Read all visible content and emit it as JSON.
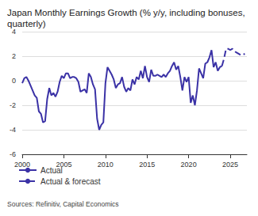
{
  "chart_data": {
    "type": "line",
    "title": "Japan Monthly Earnings Growth (% y/y, including bonuses, quarterly)",
    "source": "Sources: Refinitiv, Capital Economics",
    "x": [
      2000,
      2000.25,
      2000.5,
      2000.75,
      2001,
      2001.25,
      2001.5,
      2001.75,
      2002,
      2002.25,
      2002.5,
      2002.75,
      2003,
      2003.25,
      2003.5,
      2003.75,
      2004,
      2004.25,
      2004.5,
      2004.75,
      2005,
      2005.25,
      2005.5,
      2005.75,
      2006,
      2006.25,
      2006.5,
      2006.75,
      2007,
      2007.25,
      2007.5,
      2007.75,
      2008,
      2008.25,
      2008.5,
      2008.75,
      2009,
      2009.25,
      2009.5,
      2009.75,
      2010,
      2010.25,
      2010.5,
      2010.75,
      2011,
      2011.25,
      2011.5,
      2011.75,
      2012,
      2012.25,
      2012.5,
      2012.75,
      2013,
      2013.25,
      2013.5,
      2013.75,
      2014,
      2014.25,
      2014.5,
      2014.75,
      2015,
      2015.25,
      2015.5,
      2015.75,
      2016,
      2016.25,
      2016.5,
      2016.75,
      2017,
      2017.25,
      2017.5,
      2017.75,
      2018,
      2018.25,
      2018.5,
      2018.75,
      2019,
      2019.25,
      2019.5,
      2019.75,
      2020,
      2020.25,
      2020.5,
      2020.75,
      2021,
      2021.25,
      2021.5,
      2021.75,
      2022,
      2022.25,
      2022.5,
      2022.75,
      2023,
      2023.25,
      2023.5,
      2023.75,
      2024,
      2024.25,
      2024.5,
      2024.75,
      2025,
      2025.25,
      2025.5,
      2025.75,
      2026,
      2026.25,
      2026.5,
      2026.75
    ],
    "series": [
      {
        "name": "Actual",
        "color": "#3b32a6",
        "line_style": "solid",
        "values": [
          -0.2,
          0.2,
          0.3,
          0.0,
          -0.4,
          -0.8,
          -1.2,
          -1.4,
          -2.5,
          -2.7,
          -3.4,
          -3.3,
          -1.5,
          -0.6,
          -1.2,
          -1.0,
          -1.3,
          -0.9,
          -0.1,
          0.4,
          0.2,
          0.6,
          0.6,
          0.2,
          0.3,
          0.3,
          0.2,
          -0.1,
          -0.9,
          -0.8,
          -0.7,
          -1.0,
          0.6,
          0.3,
          -0.3,
          -0.7,
          -3.1,
          -4.0,
          -3.6,
          -3.4,
          -0.2,
          1.1,
          0.8,
          0.5,
          0.1,
          -0.6,
          -0.3,
          -0.2,
          0.3,
          -0.5,
          -0.9,
          -0.6,
          -0.8,
          0.1,
          -0.3,
          0.3,
          0.1,
          0.8,
          0.2,
          1.2,
          0.3,
          -0.1,
          0.9,
          0.4,
          0.4,
          0.5,
          0.4,
          0.3,
          0.5,
          0.3,
          0.6,
          0.8,
          1.2,
          1.5,
          0.9,
          1.2,
          0.3,
          -0.8,
          0.3,
          -0.1,
          0.3,
          -1.8,
          -1.2,
          -2.0,
          -0.8,
          1.0,
          0.6,
          0.2,
          1.4,
          1.5,
          1.9,
          2.5,
          1.1,
          1.5,
          0.8,
          1.1,
          1.2,
          null,
          null,
          null,
          null,
          null,
          null,
          null,
          null,
          null,
          null,
          null
        ]
      },
      {
        "name": "Actual & forecast",
        "color": "#3b32a6",
        "line_style": "dashed",
        "values": [
          null,
          null,
          null,
          null,
          null,
          null,
          null,
          null,
          null,
          null,
          null,
          null,
          null,
          null,
          null,
          null,
          null,
          null,
          null,
          null,
          null,
          null,
          null,
          null,
          null,
          null,
          null,
          null,
          null,
          null,
          null,
          null,
          null,
          null,
          null,
          null,
          null,
          null,
          null,
          null,
          null,
          null,
          null,
          null,
          null,
          null,
          null,
          null,
          null,
          null,
          null,
          null,
          null,
          null,
          null,
          null,
          null,
          null,
          null,
          null,
          null,
          null,
          null,
          null,
          null,
          null,
          null,
          null,
          null,
          null,
          null,
          null,
          null,
          null,
          null,
          null,
          null,
          null,
          null,
          null,
          null,
          null,
          null,
          null,
          null,
          null,
          null,
          null,
          null,
          null,
          null,
          null,
          null,
          null,
          null,
          null,
          1.2,
          1.8,
          2.6,
          2.6,
          2.5,
          2.6,
          2.4,
          2.3,
          2.2,
          2.1,
          2.1,
          2.2
        ]
      }
    ],
    "xlim": [
      2000,
      2027
    ],
    "xticks": [
      2000,
      2005,
      2010,
      2015,
      2020,
      2025
    ],
    "ylim": [
      -6,
      4
    ],
    "yticks": [
      -6,
      -4,
      -2,
      0,
      2,
      4
    ],
    "grid": true,
    "legend": "bottom-left"
  }
}
